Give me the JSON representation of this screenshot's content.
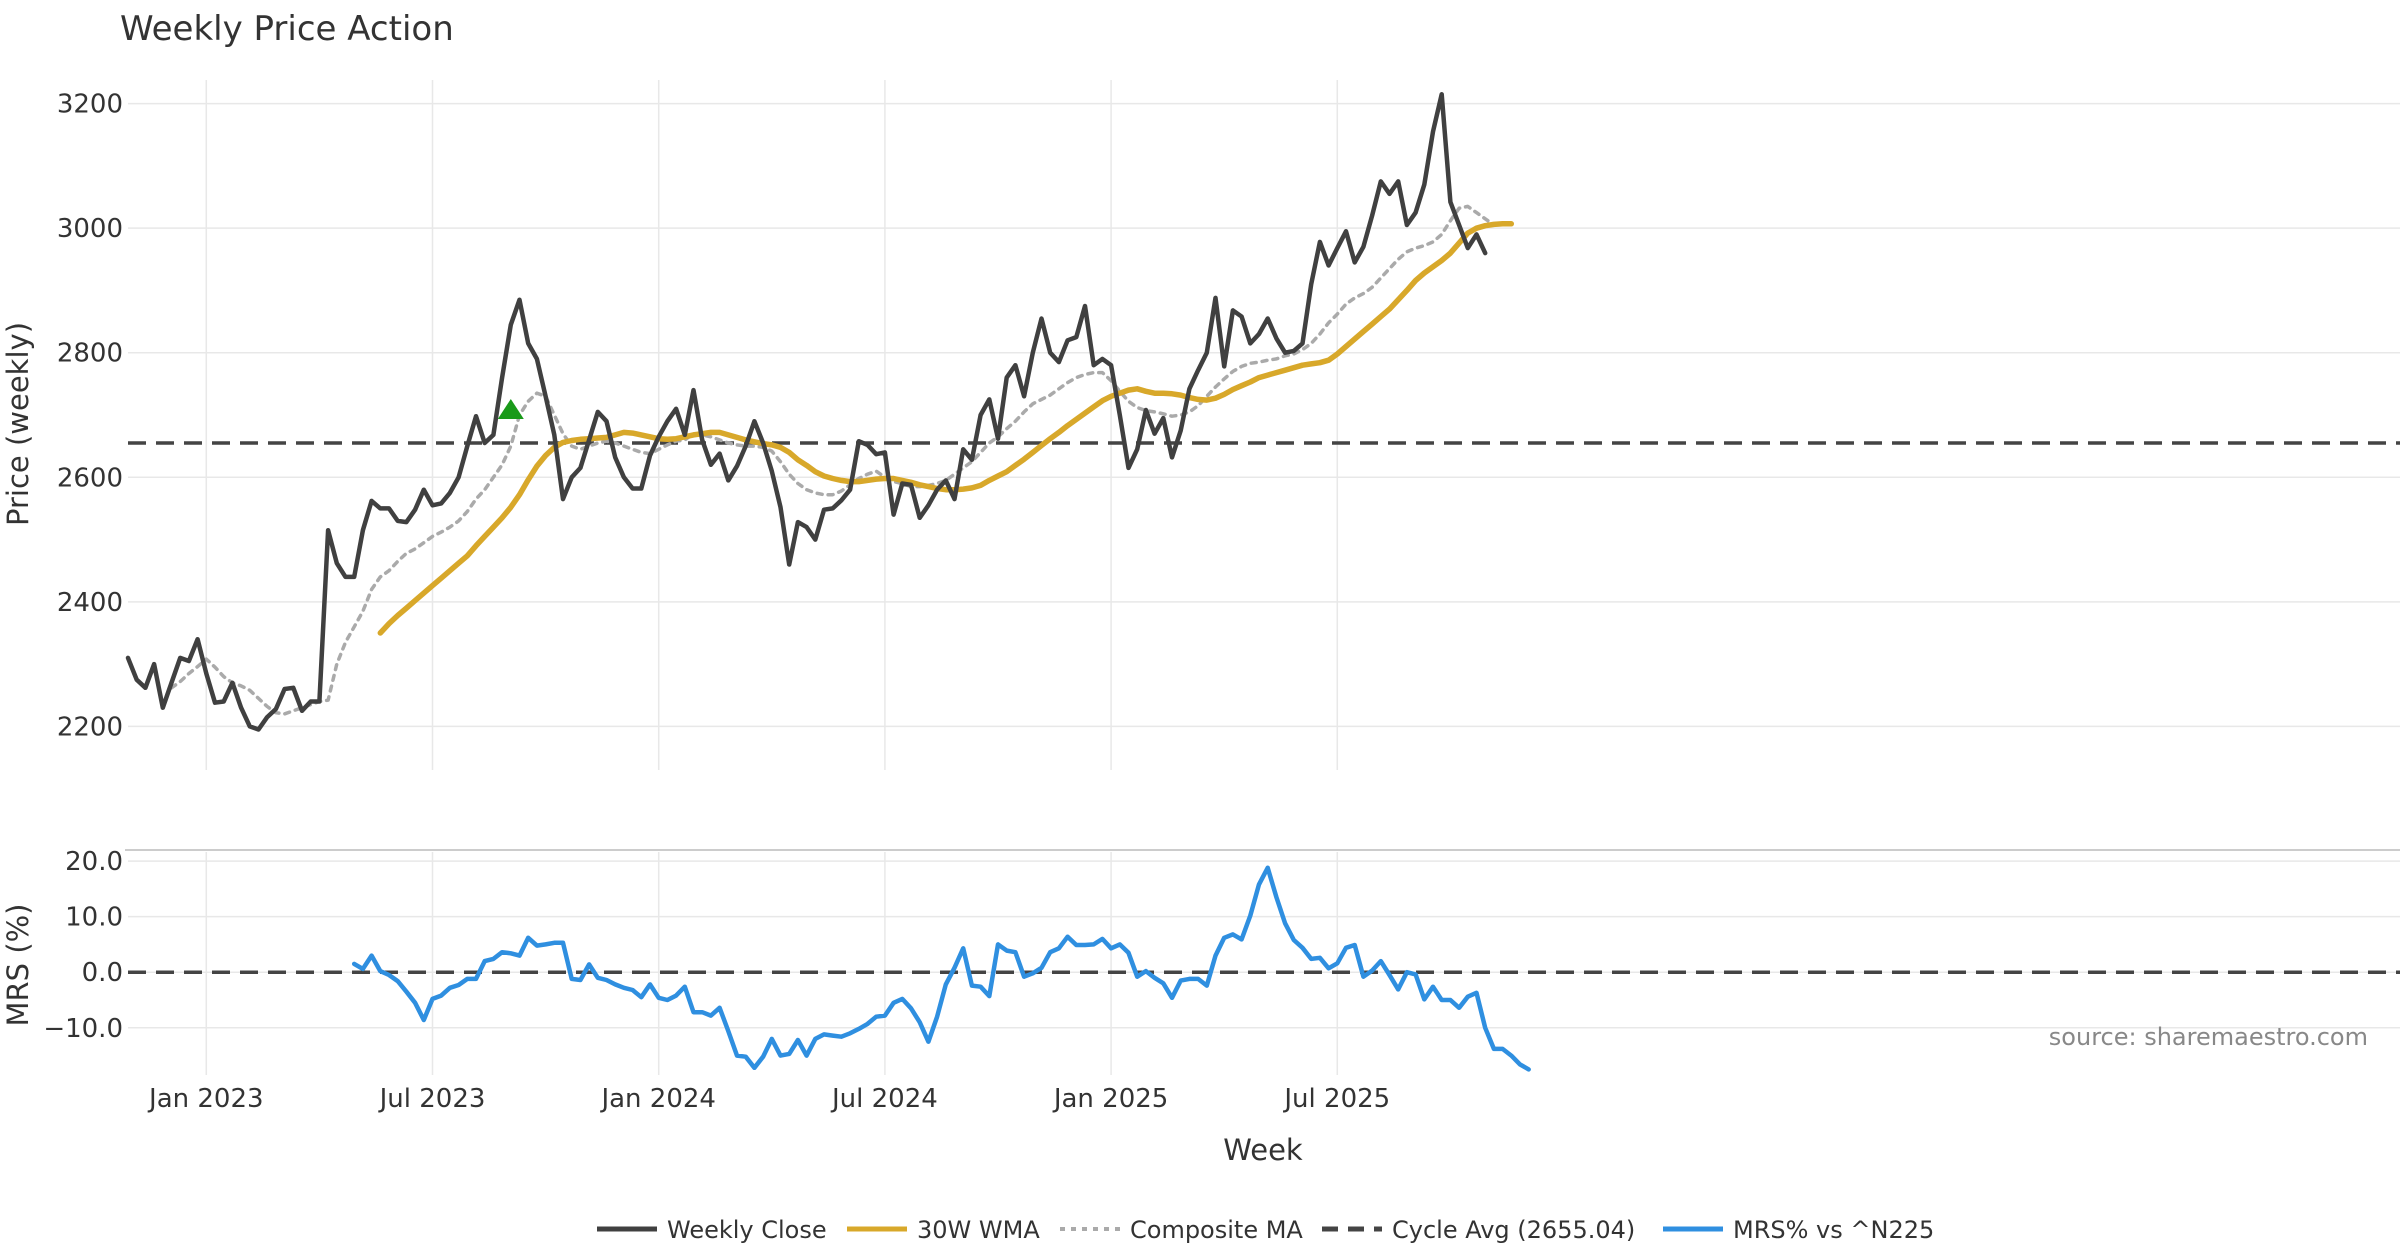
{
  "chart_data": {
    "type": "line",
    "title": "Weekly Price Action",
    "xlabel": "Week",
    "source": "source: sharemaestro.com",
    "x_ticks": [
      "Jan 2023",
      "Jul 2023",
      "Jan 2024",
      "Jul 2024",
      "Jan 2025",
      "Jul 2025"
    ],
    "x_range": [
      "2022-11-01",
      "2025-10-20"
    ],
    "price_panel": {
      "ylabel": "Price (weekly)",
      "ylim": [
        2130,
        3270
      ],
      "y_ticks": [
        2200,
        2400,
        2600,
        2800,
        3000,
        3200
      ],
      "series": [
        {
          "name": "Weekly Close",
          "color": "#404040",
          "style": "solid",
          "values": [
            2310,
            2275,
            2262,
            2300,
            2230,
            2270,
            2310,
            2305,
            2340,
            2285,
            2238,
            2240,
            2270,
            2230,
            2200,
            2195,
            2215,
            2228,
            2260,
            2262,
            2225,
            2240,
            2240,
            2515,
            2462,
            2440,
            2440,
            2515,
            2562,
            2550,
            2550,
            2530,
            2528,
            2548,
            2580,
            2555,
            2558,
            2575,
            2600,
            2650,
            2698,
            2655,
            2668,
            2760,
            2845,
            2885,
            2815,
            2790,
            2730,
            2668,
            2565,
            2600,
            2615,
            2660,
            2705,
            2690,
            2632,
            2600,
            2582,
            2582,
            2635,
            2665,
            2690,
            2710,
            2668,
            2740,
            2660,
            2620,
            2638,
            2595,
            2618,
            2650,
            2690,
            2655,
            2610,
            2552,
            2460,
            2528,
            2520,
            2500,
            2548,
            2550,
            2563,
            2580,
            2658,
            2652,
            2637,
            2640,
            2540,
            2590,
            2588,
            2535,
            2555,
            2580,
            2595,
            2565,
            2645,
            2628,
            2700,
            2725,
            2662,
            2760,
            2780,
            2730,
            2800,
            2855,
            2800,
            2785,
            2820,
            2825,
            2875,
            2780,
            2790,
            2780,
            2700,
            2615,
            2645,
            2708,
            2670,
            2695,
            2632,
            2675,
            2742,
            2772,
            2800,
            2888,
            2778,
            2868,
            2858,
            2815,
            2830,
            2855,
            2823,
            2800,
            2803,
            2815,
            2910,
            2978,
            2940,
            2968,
            2995,
            2945,
            2970,
            3020,
            3075,
            3055,
            3075,
            3005,
            3025,
            3070,
            3155,
            3215,
            3042,
            3005,
            2968,
            2990,
            2960
          ]
        },
        {
          "name": "30W WMA",
          "color": "#d8a82a",
          "style": "solid",
          "start_index": 29,
          "values": [
            2350,
            2365,
            2378,
            2390,
            2402,
            2414,
            2426,
            2438,
            2450,
            2462,
            2474,
            2490,
            2505,
            2520,
            2535,
            2552,
            2572,
            2596,
            2618,
            2635,
            2648,
            2656,
            2659,
            2661,
            2662,
            2663,
            2664,
            2668,
            2672,
            2671,
            2668,
            2665,
            2662,
            2661,
            2662,
            2665,
            2668,
            2670,
            2672,
            2672,
            2668,
            2664,
            2660,
            2657,
            2654,
            2652,
            2648,
            2640,
            2628,
            2619,
            2609,
            2602,
            2598,
            2595,
            2593,
            2593,
            2595,
            2597,
            2598,
            2598,
            2595,
            2592,
            2588,
            2585,
            2582,
            2580,
            2580,
            2581,
            2583,
            2587,
            2595,
            2602,
            2609,
            2619,
            2629,
            2640,
            2651,
            2662,
            2672,
            2683,
            2693,
            2703,
            2713,
            2723,
            2730,
            2735,
            2740,
            2742,
            2738,
            2735,
            2735,
            2734,
            2732,
            2728,
            2725,
            2724,
            2727,
            2733,
            2741,
            2747,
            2753,
            2760,
            2764,
            2768,
            2772,
            2776,
            2780,
            2782,
            2784,
            2788,
            2798,
            2810,
            2822,
            2834,
            2846,
            2858,
            2870,
            2885,
            2900,
            2916,
            2928,
            2938,
            2948,
            2960,
            2976,
            2992,
            3000,
            3004,
            3006,
            3007,
            3007
          ]
        },
        {
          "name": "Composite MA",
          "color": "#aaaaaa",
          "style": "dotted",
          "start_index": 5,
          "values": [
            2262,
            2272,
            2285,
            2296,
            2308,
            2295,
            2280,
            2270,
            2265,
            2258,
            2245,
            2232,
            2222,
            2220,
            2225,
            2230,
            2235,
            2240,
            2242,
            2300,
            2335,
            2360,
            2385,
            2420,
            2440,
            2450,
            2465,
            2478,
            2485,
            2495,
            2505,
            2512,
            2520,
            2530,
            2545,
            2565,
            2580,
            2600,
            2620,
            2650,
            2700,
            2722,
            2735,
            2730,
            2700,
            2670,
            2650,
            2645,
            2650,
            2655,
            2658,
            2655,
            2650,
            2645,
            2640,
            2638,
            2645,
            2652,
            2658,
            2660,
            2670,
            2668,
            2665,
            2660,
            2655,
            2652,
            2650,
            2650,
            2648,
            2642,
            2625,
            2605,
            2590,
            2580,
            2575,
            2572,
            2572,
            2578,
            2588,
            2598,
            2605,
            2610,
            2600,
            2593,
            2590,
            2585,
            2585,
            2587,
            2590,
            2595,
            2605,
            2615,
            2625,
            2640,
            2655,
            2665,
            2678,
            2690,
            2705,
            2718,
            2725,
            2732,
            2742,
            2752,
            2760,
            2765,
            2768,
            2768,
            2755,
            2738,
            2722,
            2712,
            2707,
            2705,
            2702,
            2698,
            2700,
            2705,
            2715,
            2730,
            2745,
            2758,
            2770,
            2778,
            2783,
            2785,
            2788,
            2790,
            2795,
            2798,
            2805,
            2815,
            2830,
            2848,
            2862,
            2878,
            2888,
            2895,
            2905,
            2920,
            2935,
            2950,
            2962,
            2968,
            2972,
            2978,
            2990,
            3012,
            3032,
            3035,
            3025,
            3015,
            3005
          ]
        },
        {
          "name": "Cycle Avg (2655.04)",
          "color": "#444444",
          "style": "dashed",
          "constant": 2655.04
        }
      ],
      "markers": [
        {
          "type": "triangle-up",
          "color": "#1a9a1a",
          "index": 44,
          "value": 2708
        }
      ]
    },
    "mrs_panel": {
      "ylabel": "MRS (%)",
      "ylim": [
        -18.5,
        22
      ],
      "y_ticks": [
        "20.0",
        "10.0",
        "0.0",
        "−10.0"
      ],
      "y_values": [
        20,
        10,
        0,
        -10
      ],
      "series": [
        {
          "name": "MRS% vs ^N225",
          "color": "#2f8fe0",
          "style": "solid",
          "start_index": 26,
          "values": [
            1.5,
            0.6,
            3.0,
            0.2,
            -0.5,
            -1.6,
            -3.5,
            -5.5,
            -8.6,
            -4.8,
            -4.2,
            -2.8,
            -2.3,
            -1.2,
            -1.2,
            2.0,
            2.4,
            3.6,
            3.4,
            3.0,
            6.2,
            4.8,
            5.0,
            5.3,
            5.3,
            -1.2,
            -1.4,
            1.4,
            -1.0,
            -1.4,
            -2.2,
            -2.8,
            -3.2,
            -4.5,
            -2.2,
            -4.6,
            -5.0,
            -4.2,
            -2.6,
            -7.2,
            -7.2,
            -7.8,
            -6.4,
            -10.6,
            -15.0,
            -15.2,
            -17.2,
            -15.2,
            -12.0,
            -15.0,
            -14.7,
            -12.2,
            -15.0,
            -12.0,
            -11.2,
            -11.4,
            -11.6,
            -11.0,
            -10.2,
            -9.3,
            -8.0,
            -7.8,
            -5.5,
            -4.8,
            -6.5,
            -9.0,
            -12.5,
            -8.0,
            -2.2,
            0.8,
            4.3,
            -2.4,
            -2.6,
            -4.3,
            5.0,
            3.9,
            3.6,
            -0.8,
            -0.2,
            0.8,
            3.6,
            4.3,
            6.4,
            4.9,
            4.9,
            5.0,
            6.0,
            4.3,
            5.0,
            3.5,
            -0.8,
            0.2,
            -1.0,
            -2.0,
            -4.6,
            -1.5,
            -1.2,
            -1.2,
            -2.4,
            3.0,
            6.2,
            6.8,
            5.9,
            10.2,
            15.8,
            18.8,
            13.5,
            8.8,
            5.8,
            4.4,
            2.4,
            2.6,
            0.7,
            1.6,
            4.4,
            4.9,
            -0.8,
            0.3,
            2.0,
            -0.5,
            -3.1,
            0.0,
            -0.4,
            -4.9,
            -2.6,
            -5.0,
            -5.0,
            -6.4,
            -4.4,
            -3.7,
            -10.0,
            -13.8,
            -13.8,
            -15.0,
            -16.6,
            -17.5
          ]
        },
        {
          "name": "zero",
          "color": "#444444",
          "style": "dashed",
          "constant": 0
        }
      ]
    },
    "legend": {
      "placement": "bottom-center",
      "entries": [
        {
          "label": "Weekly Close",
          "color": "#404040",
          "style": "solid"
        },
        {
          "label": "30W WMA",
          "color": "#d8a82a",
          "style": "solid"
        },
        {
          "label": "Composite MA",
          "color": "#aaaaaa",
          "style": "dotted"
        },
        {
          "label": "Cycle Avg (2655.04)",
          "color": "#444444",
          "style": "dashed"
        },
        {
          "label": "MRS% vs ^N225",
          "color": "#2f8fe0",
          "style": "solid"
        }
      ]
    }
  }
}
